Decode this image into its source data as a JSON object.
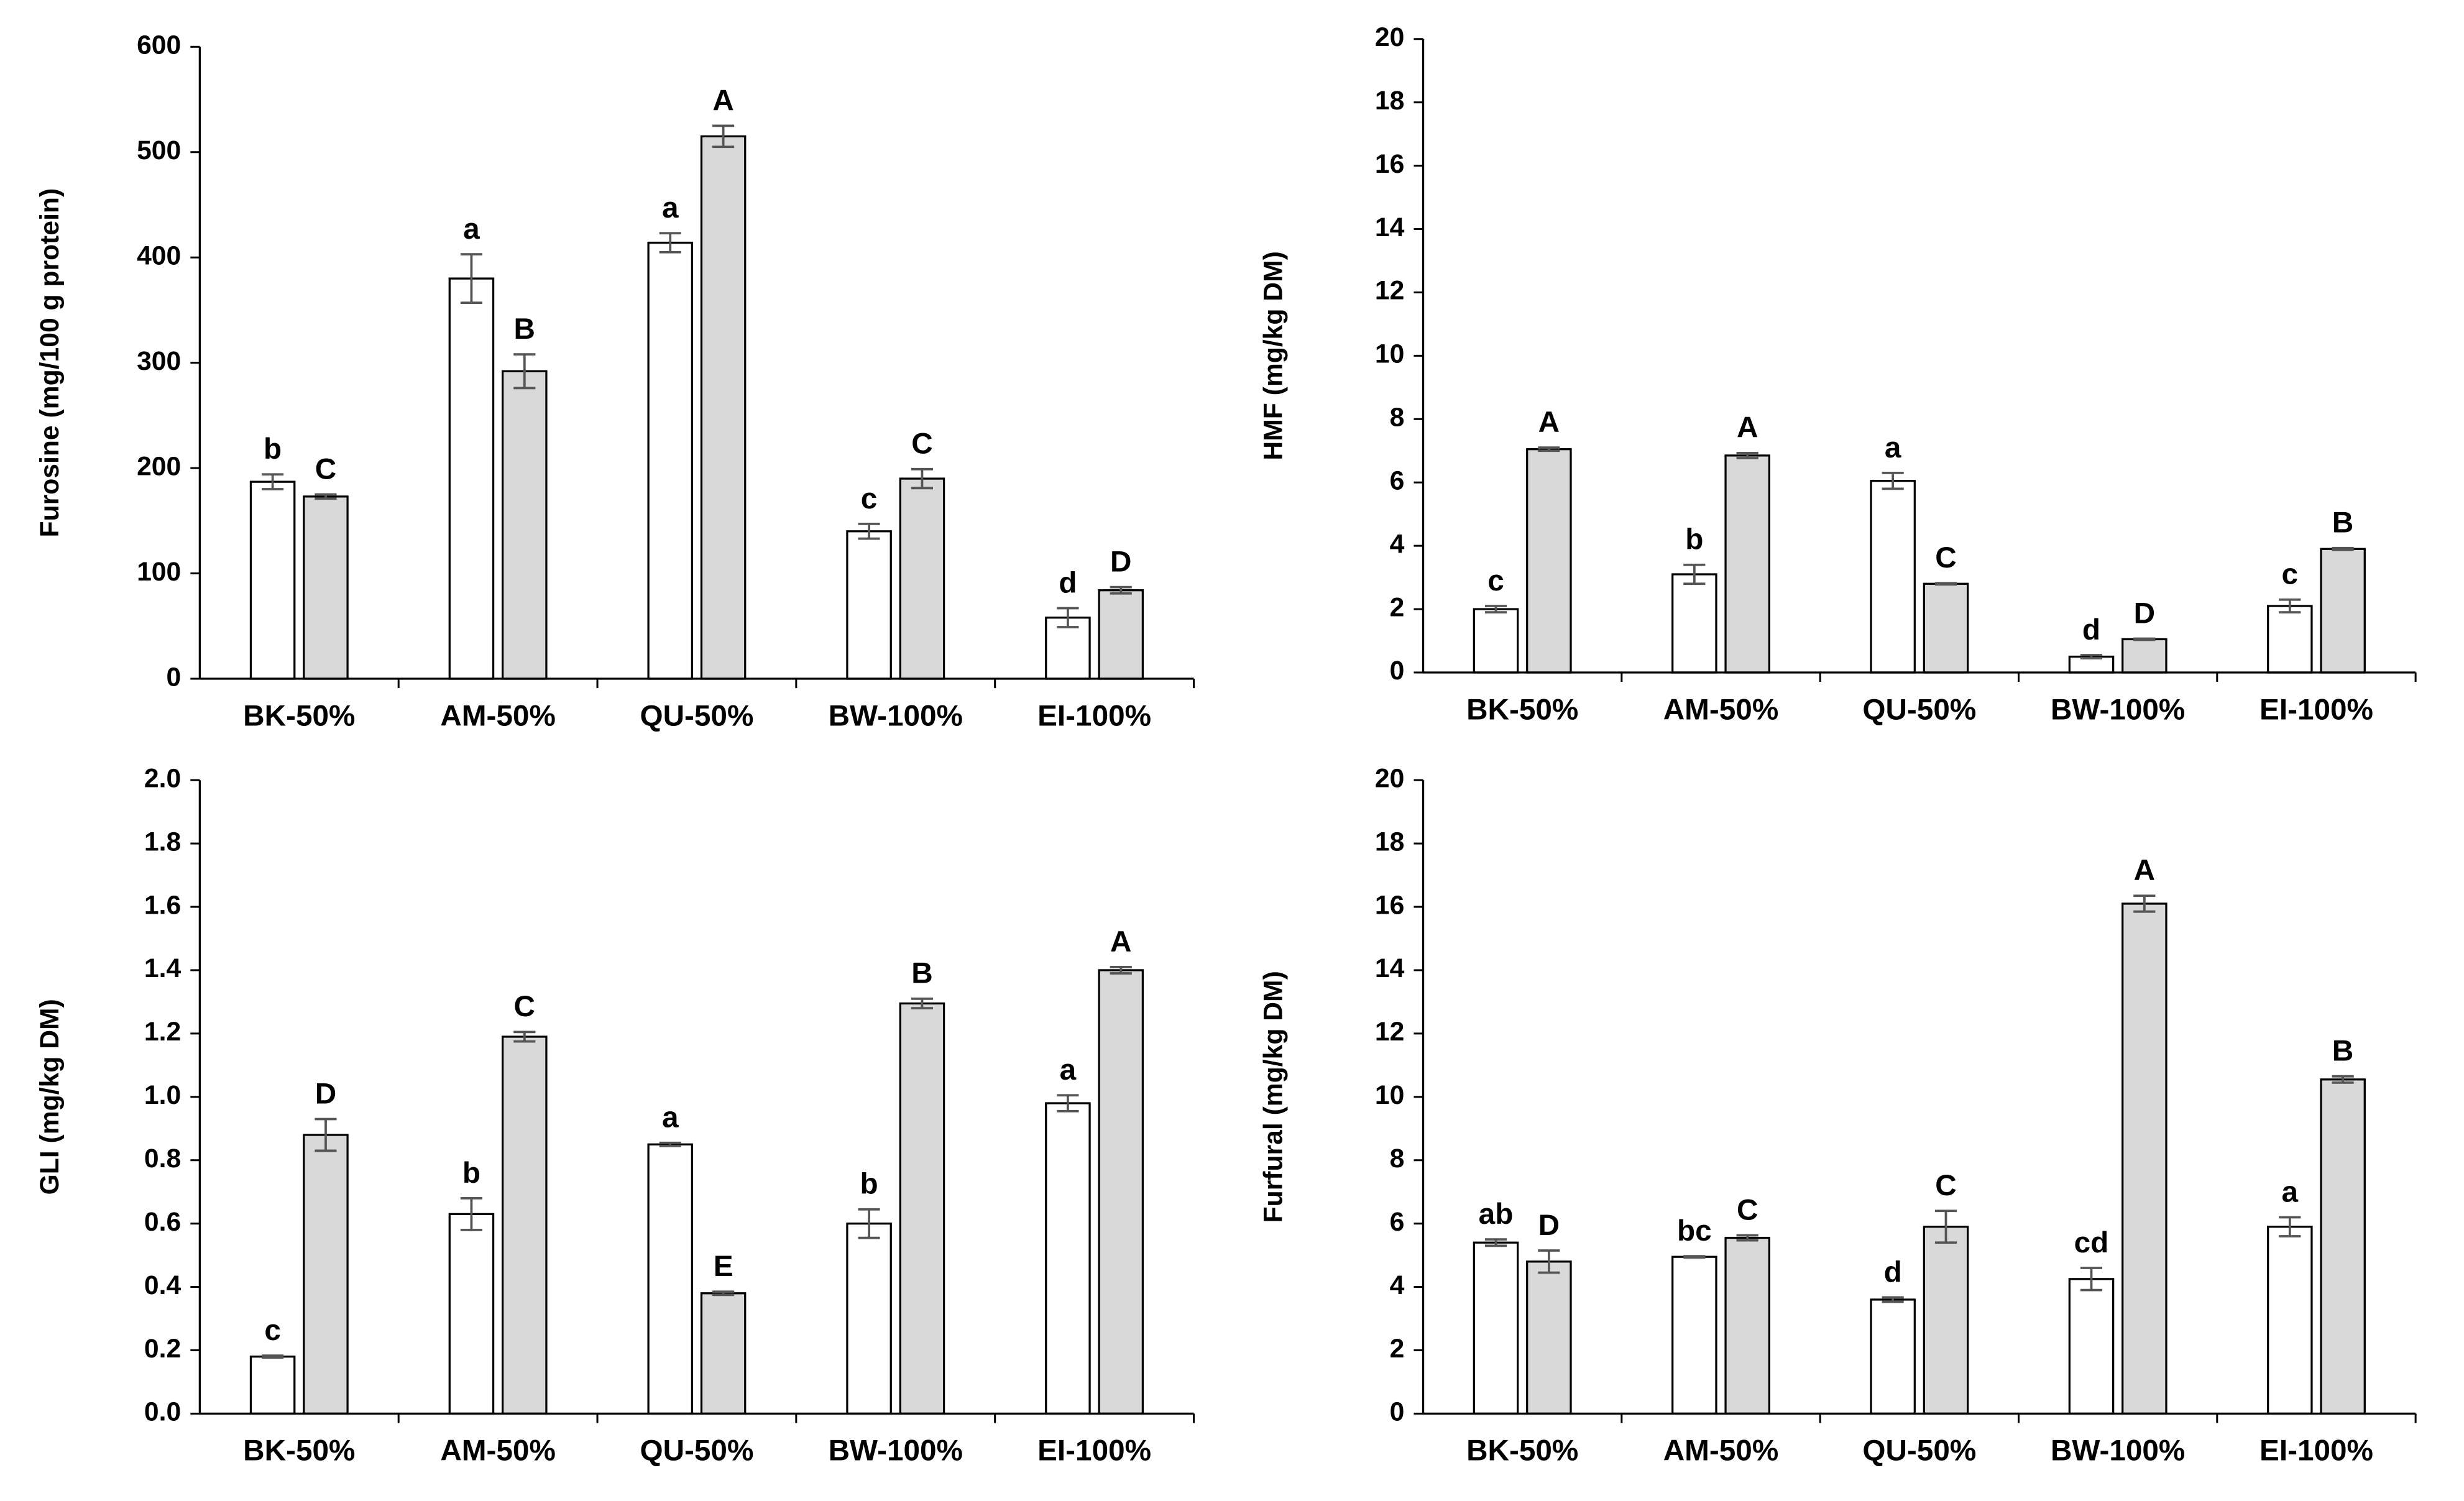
{
  "chart_data": [
    {
      "type": "bar",
      "ylabel": "Furosine  (mg/100 g protein)",
      "categories": [
        "BK-50%",
        "AM-50%",
        "QU-50%",
        "BW-100%",
        "EI-100%"
      ],
      "ylim": [
        0,
        600
      ],
      "yticks": [
        0,
        100,
        200,
        300,
        400,
        500,
        600
      ],
      "series": [
        {
          "color": "#ffffff",
          "values": [
            187,
            380,
            414,
            140,
            58
          ],
          "errors": [
            7,
            23,
            9,
            7,
            9
          ],
          "letters": [
            "b",
            "a",
            "a",
            "c",
            "d"
          ]
        },
        {
          "color": "#d9d9d9",
          "values": [
            173,
            292,
            515,
            190,
            84
          ],
          "errors": [
            2,
            16,
            10,
            9,
            3
          ],
          "letters": [
            "C",
            "B",
            "A",
            "C",
            "D"
          ]
        }
      ]
    },
    {
      "type": "bar",
      "ylabel": "HMF  (mg/kg DM)",
      "categories": [
        "BK-50%",
        "AM-50%",
        "QU-50%",
        "BW-100%",
        "EI-100%"
      ],
      "ylim": [
        0,
        20
      ],
      "yticks": [
        0,
        2,
        4,
        6,
        8,
        10,
        12,
        14,
        16,
        18,
        20
      ],
      "series": [
        {
          "color": "#ffffff",
          "values": [
            2.0,
            3.1,
            6.05,
            0.5,
            2.1
          ],
          "errors": [
            0.1,
            0.3,
            0.25,
            0.05,
            0.2
          ],
          "letters": [
            "c",
            "b",
            "a",
            "d",
            "c"
          ]
        },
        {
          "color": "#d9d9d9",
          "values": [
            7.05,
            6.85,
            2.8,
            1.05,
            3.9
          ],
          "errors": [
            0.05,
            0.08,
            0.02,
            0.02,
            0.03
          ],
          "letters": [
            "A",
            "A",
            "C",
            "D",
            "B"
          ]
        }
      ]
    },
    {
      "type": "bar",
      "ylabel": "GLI  (mg/kg DM)",
      "categories": [
        "BK-50%",
        "AM-50%",
        "QU-50%",
        "BW-100%",
        "EI-100%"
      ],
      "ylim": [
        0,
        2
      ],
      "yticks": [
        {
          "value": 0,
          "label": "0.0"
        },
        0.2,
        0.4,
        0.6,
        0.8,
        {
          "value": 1,
          "label": "1.0"
        },
        1.2,
        1.4,
        1.6,
        1.8,
        {
          "value": 2,
          "label": "2.0"
        }
      ],
      "series": [
        {
          "color": "#ffffff",
          "values": [
            0.18,
            0.63,
            0.85,
            0.6,
            0.98
          ],
          "errors": [
            0.003,
            0.05,
            0.005,
            0.045,
            0.025
          ],
          "letters": [
            "c",
            "b",
            "a",
            "b",
            "a"
          ]
        },
        {
          "color": "#d9d9d9",
          "values": [
            0.88,
            1.19,
            0.38,
            1.295,
            1.4
          ],
          "errors": [
            0.05,
            0.015,
            0.005,
            0.015,
            0.01
          ],
          "letters": [
            "D",
            "C",
            "E",
            "B",
            "A"
          ]
        }
      ]
    },
    {
      "type": "bar",
      "ylabel": "Furfural  (mg/kg DM)",
      "categories": [
        "BK-50%",
        "AM-50%",
        "QU-50%",
        "BW-100%",
        "EI-100%"
      ],
      "ylim": [
        0,
        20
      ],
      "yticks": [
        0,
        2,
        4,
        6,
        8,
        10,
        12,
        14,
        16,
        18,
        20
      ],
      "series": [
        {
          "color": "#ffffff",
          "values": [
            5.4,
            4.95,
            3.6,
            4.25,
            5.9
          ],
          "errors": [
            0.1,
            0.02,
            0.07,
            0.35,
            0.3
          ],
          "letters": [
            "ab",
            "bc",
            "d",
            "cd",
            "a"
          ]
        },
        {
          "color": "#d9d9d9",
          "values": [
            4.8,
            5.55,
            5.9,
            16.1,
            10.55
          ],
          "errors": [
            0.35,
            0.08,
            0.5,
            0.25,
            0.1
          ],
          "letters": [
            "D",
            "C",
            "C",
            "A",
            "B"
          ]
        }
      ]
    }
  ]
}
